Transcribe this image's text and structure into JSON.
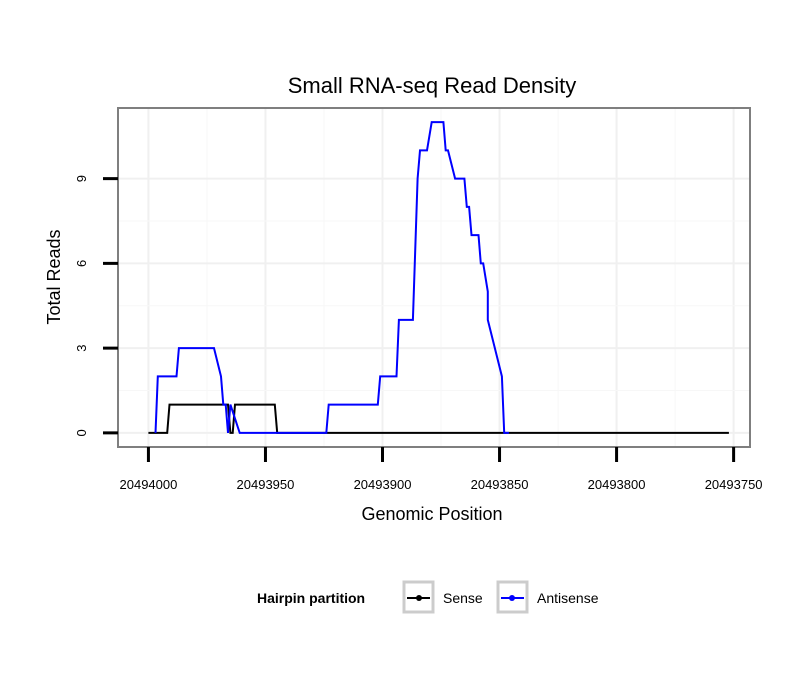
{
  "chart_data": {
    "type": "line",
    "title": "Small RNA-seq Read Density",
    "xlabel": "Genomic Position",
    "ylabel": "Total Reads",
    "x_reversed": true,
    "xlim": [
      20494013,
      20493743
    ],
    "ylim": [
      -0.5,
      11.5
    ],
    "x_ticks": [
      20494000,
      20493950,
      20493900,
      20493850,
      20493800,
      20493750
    ],
    "x_tick_labels": [
      "20494000",
      "20493950",
      "20493900",
      "20493850",
      "20493800",
      "20493750"
    ],
    "y_ticks": [
      0,
      3,
      6,
      9
    ],
    "y_tick_labels": [
      "0",
      "3",
      "6",
      "9"
    ],
    "grid": true,
    "legend": {
      "title": "Hairpin partition",
      "position": "bottom"
    },
    "series": [
      {
        "name": "Sense",
        "color": "#000000",
        "x": [
          20494000,
          20493992,
          20493991,
          20493966,
          20493965,
          20493964,
          20493963,
          20493962,
          20493946,
          20493945,
          20493752
        ],
        "y": [
          0,
          0,
          1,
          1,
          0,
          0,
          1,
          1,
          1,
          0,
          0
        ]
      },
      {
        "name": "Antisense",
        "color": "#0000ff",
        "x": [
          20493997,
          20493996,
          20493988,
          20493987,
          20493972,
          20493969,
          20493968,
          20493967,
          20493966,
          20493965,
          20493961,
          20493924,
          20493923,
          20493909,
          20493908,
          20493902,
          20493901,
          20493894,
          20493893,
          20493888,
          20493887,
          20493885,
          20493884,
          20493883,
          20493881,
          20493879,
          20493874,
          20493873,
          20493872,
          20493869,
          20493865,
          20493864,
          20493863,
          20493862,
          20493861,
          20493860,
          20493859,
          20493858,
          20493857,
          20493855,
          20493855,
          20493849,
          20493848,
          20493847,
          20493846
        ],
        "y": [
          0,
          2,
          2,
          3,
          3,
          2,
          1,
          1,
          0,
          1,
          0,
          0,
          1,
          1,
          1,
          1,
          2,
          2,
          4,
          4,
          4,
          9,
          10,
          10,
          10,
          11,
          11,
          10,
          10,
          9,
          9,
          8,
          8,
          7,
          7,
          7,
          7,
          6,
          6,
          5,
          4,
          2,
          0,
          0,
          0
        ]
      }
    ]
  }
}
